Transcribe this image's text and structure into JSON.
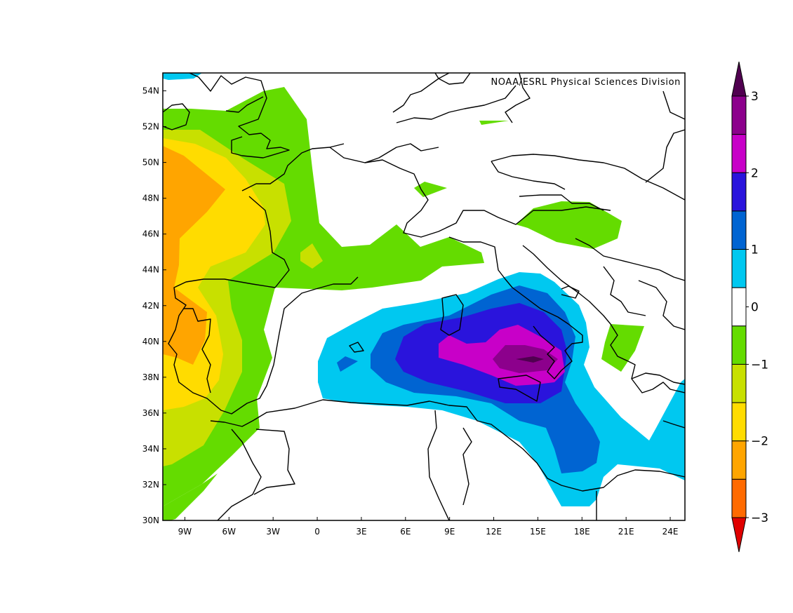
{
  "credit": "NOAA/ESRL Physical Sciences Division",
  "map": {
    "lon_range": [
      -10.5,
      25
    ],
    "lat_range": [
      30,
      55
    ],
    "x_ticks": [
      "9W",
      "6W",
      "3W",
      "0",
      "3E",
      "6E",
      "9E",
      "12E",
      "15E",
      "18E",
      "21E",
      "24E"
    ],
    "y_ticks": [
      "54N",
      "52N",
      "50N",
      "48N",
      "46N",
      "44N",
      "42N",
      "40N",
      "38N",
      "36N",
      "34N",
      "32N",
      "30N"
    ],
    "background_color": "#ffffff",
    "coastline_color": "#000000"
  },
  "colorbar": {
    "labels": [
      "3",
      "2",
      "1",
      "0",
      "−1",
      "−2",
      "−3"
    ],
    "levels": [
      -3,
      -2.5,
      -2,
      -1.5,
      -1,
      -0.5,
      0.5,
      1,
      1.5,
      2,
      2.5,
      3
    ],
    "colors": [
      "#e00000",
      "#ff6a00",
      "#ffa500",
      "#ffdc00",
      "#c8e000",
      "#64dc00",
      "#ffffff",
      "#00c8f0",
      "#0064d2",
      "#2a14dc",
      "#c800c8",
      "#8c008c",
      "#500050"
    ],
    "extend": "both"
  },
  "field_description": {
    "positive_max_location": "15E 39N",
    "negative_min_location": "9W 41N"
  }
}
